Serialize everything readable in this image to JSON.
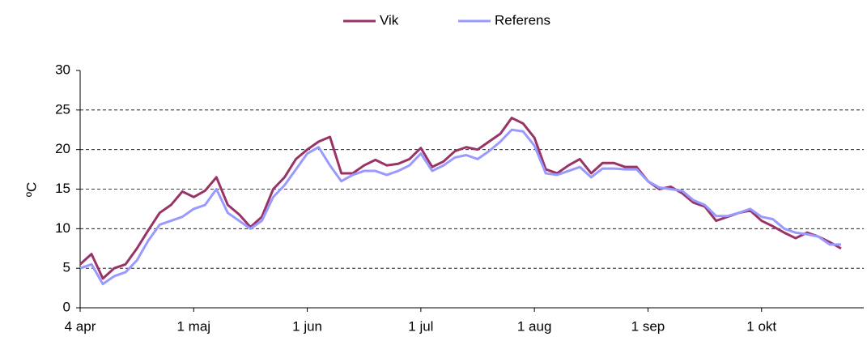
{
  "chart_data": {
    "type": "line",
    "ylabel": "ºC",
    "x": [
      0,
      3,
      6,
      9,
      12,
      15,
      18,
      21,
      24,
      27,
      30,
      33,
      36,
      39,
      42,
      45,
      48,
      51,
      54,
      57,
      60,
      63,
      66,
      69,
      72,
      75,
      78,
      81,
      84,
      87,
      90,
      93,
      96,
      99,
      102,
      105,
      108,
      111,
      114,
      117,
      120,
      123,
      126,
      129,
      132,
      135,
      138,
      141,
      144,
      147,
      150,
      153,
      156,
      159,
      162,
      165,
      168,
      171,
      174,
      177,
      180,
      183,
      186,
      189,
      192,
      195,
      198,
      201
    ],
    "series": [
      {
        "name": "Vik",
        "color": "#993366",
        "values": [
          5.5,
          6.8,
          3.7,
          5.0,
          5.5,
          7.5,
          9.8,
          12.0,
          13.0,
          14.7,
          14.0,
          14.8,
          16.5,
          13.0,
          11.8,
          10.2,
          11.5,
          15.0,
          16.5,
          18.8,
          20.0,
          21.0,
          21.6,
          17.0,
          17.0,
          18.0,
          18.7,
          18.0,
          18.2,
          18.8,
          20.2,
          17.8,
          18.5,
          19.8,
          20.3,
          20.0,
          21.0,
          22.0,
          24.0,
          23.3,
          21.5,
          17.5,
          17.0,
          18.0,
          18.8,
          17.0,
          18.3,
          18.3,
          17.8,
          17.8,
          16.0,
          15.0,
          15.3,
          14.5,
          13.3,
          12.8,
          11.0,
          11.5,
          12.0,
          12.3,
          11.0,
          10.3,
          9.5,
          8.8,
          9.5,
          9.0,
          8.3,
          7.5
        ]
      },
      {
        "name": "Referens",
        "color": "#9999ff",
        "values": [
          5.0,
          5.5,
          3.0,
          4.0,
          4.5,
          6.0,
          8.5,
          10.5,
          11.0,
          11.5,
          12.5,
          13.0,
          15.0,
          12.0,
          11.0,
          10.0,
          11.0,
          14.0,
          15.5,
          17.5,
          19.5,
          20.3,
          18.0,
          16.0,
          16.8,
          17.3,
          17.3,
          16.8,
          17.3,
          18.0,
          19.5,
          17.3,
          18.0,
          19.0,
          19.3,
          18.8,
          19.8,
          21.0,
          22.5,
          22.3,
          20.5,
          17.0,
          16.8,
          17.3,
          17.8,
          16.5,
          17.6,
          17.6,
          17.5,
          17.5,
          16.0,
          15.2,
          15.0,
          14.8,
          13.6,
          13.0,
          11.6,
          11.6,
          12.0,
          12.5,
          11.5,
          11.2,
          10.0,
          9.5,
          9.3,
          9.0,
          8.0,
          8.0
        ]
      }
    ],
    "xlim": [
      0,
      207
    ],
    "xticks": [
      {
        "value": 0,
        "label": "4 apr"
      },
      {
        "value": 30,
        "label": "1 maj"
      },
      {
        "value": 60,
        "label": "1 jun"
      },
      {
        "value": 90,
        "label": "1 jul"
      },
      {
        "value": 120,
        "label": "1 aug"
      },
      {
        "value": 150,
        "label": "1 sep"
      },
      {
        "value": 180,
        "label": "1 okt"
      }
    ],
    "ylim": [
      0,
      30
    ],
    "yticks": [
      0,
      5,
      10,
      15,
      20,
      25,
      30
    ],
    "grid": true,
    "legend": "top"
  }
}
